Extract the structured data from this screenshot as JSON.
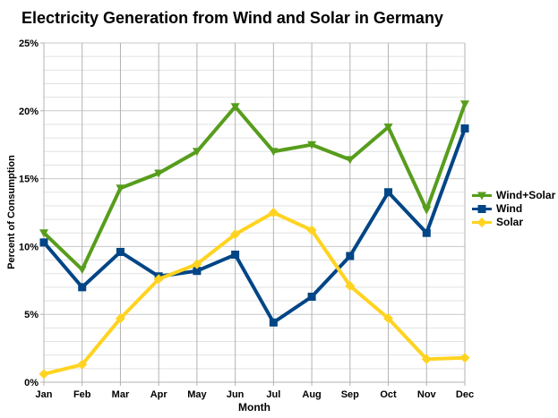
{
  "title": "Electricity Generation from Wind and Solar in Germany",
  "chart_data": {
    "type": "line",
    "title": "Electricity Generation from Wind and Solar in Germany",
    "xlabel": "Month",
    "ylabel": "Percent of Consumption",
    "ylim": [
      0,
      25
    ],
    "y_major_step": 5,
    "y_minor_step": 1,
    "y_tick_labels": [
      "0%",
      "5%",
      "10%",
      "15%",
      "20%",
      "25%"
    ],
    "grid": true,
    "legend_position": "right",
    "categories": [
      "Jan",
      "Feb",
      "Mar",
      "Apr",
      "May",
      "Jun",
      "Jul",
      "Aug",
      "Sep",
      "Oct",
      "Nov",
      "Dec"
    ],
    "series": [
      {
        "name": "Wind+Solar",
        "color": "#579d1c",
        "marker": "triangle-down",
        "values": [
          11.0,
          8.3,
          14.3,
          15.4,
          17.0,
          20.3,
          17.0,
          17.5,
          16.4,
          18.8,
          12.7,
          20.5
        ]
      },
      {
        "name": "Wind",
        "color": "#004586",
        "marker": "square",
        "values": [
          10.3,
          7.0,
          9.6,
          7.8,
          8.2,
          9.4,
          4.4,
          6.3,
          9.3,
          14.0,
          11.0,
          18.7
        ]
      },
      {
        "name": "Solar",
        "color": "#ffd320",
        "marker": "diamond",
        "values": [
          0.6,
          1.3,
          4.7,
          7.6,
          8.7,
          10.9,
          12.5,
          11.2,
          7.1,
          4.7,
          1.7,
          1.8
        ]
      }
    ]
  },
  "colors": {
    "background": "#ffffff",
    "text": "#000000",
    "axis_line": "#b3b3b3",
    "grid_major": "#c8c8c8",
    "grid_minor": "#e2e2e2",
    "grid_vertical": "#b3b3b3"
  }
}
